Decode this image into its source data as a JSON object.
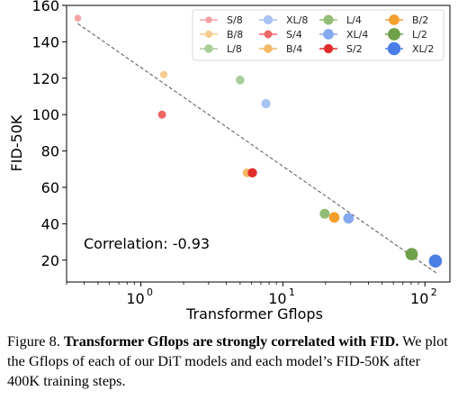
{
  "chart_data": {
    "type": "scatter",
    "xlabel": "Transformer Gflops",
    "ylabel": "FID-50K",
    "xscale": "log",
    "xlim": [
      0.3,
      150
    ],
    "ylim": [
      8,
      160
    ],
    "x_ticks": [
      {
        "value": 1,
        "base": "10",
        "exp": "0"
      },
      {
        "value": 10,
        "base": "10",
        "exp": "1"
      },
      {
        "value": 100,
        "base": "10",
        "exp": "2"
      }
    ],
    "y_ticks": [
      20,
      40,
      60,
      80,
      100,
      120,
      140,
      160
    ],
    "grid": false,
    "legend_position": "top-right",
    "annotation": "Correlation: -0.93",
    "trend_line": {
      "x": [
        0.36,
        120
      ],
      "y": [
        150,
        13
      ]
    },
    "series": [
      {
        "name": "S/8",
        "color": "#f4a3a3",
        "size": 5.5,
        "x": 0.36,
        "y": 153
      },
      {
        "name": "B/8",
        "color": "#f7cc91",
        "size": 6,
        "x": 1.45,
        "y": 122
      },
      {
        "name": "L/8",
        "color": "#aacc99",
        "size": 7,
        "x": 5.0,
        "y": 119
      },
      {
        "name": "XL/8",
        "color": "#a9c4f2",
        "size": 7.5,
        "x": 7.6,
        "y": 106
      },
      {
        "name": "S/4",
        "color": "#ed6767",
        "size": 6.5,
        "x": 1.41,
        "y": 100
      },
      {
        "name": "B/4",
        "color": "#f3b865",
        "size": 7,
        "x": 5.6,
        "y": 68
      },
      {
        "name": "L/4",
        "color": "#93bd76",
        "size": 8,
        "x": 19.7,
        "y": 45.5
      },
      {
        "name": "XL/4",
        "color": "#86a9ef",
        "size": 8.5,
        "x": 29.0,
        "y": 43
      },
      {
        "name": "S/2",
        "color": "#e32d2d",
        "size": 7.5,
        "x": 6.1,
        "y": 68
      },
      {
        "name": "B/2",
        "color": "#f29f2e",
        "size": 8.5,
        "x": 23.0,
        "y": 43.5
      },
      {
        "name": "L/2",
        "color": "#6fa04b",
        "size": 10,
        "x": 80.7,
        "y": 23.3
      },
      {
        "name": "XL/2",
        "color": "#4a7ee6",
        "size": 10.5,
        "x": 118.6,
        "y": 19.5
      }
    ]
  },
  "caption": {
    "label": "Figure 8.",
    "title": "Transformer Gflops are strongly correlated with FID.",
    "body": "We plot the Gflops of each of our DiT models and each model’s FID-50K after 400K training steps."
  }
}
